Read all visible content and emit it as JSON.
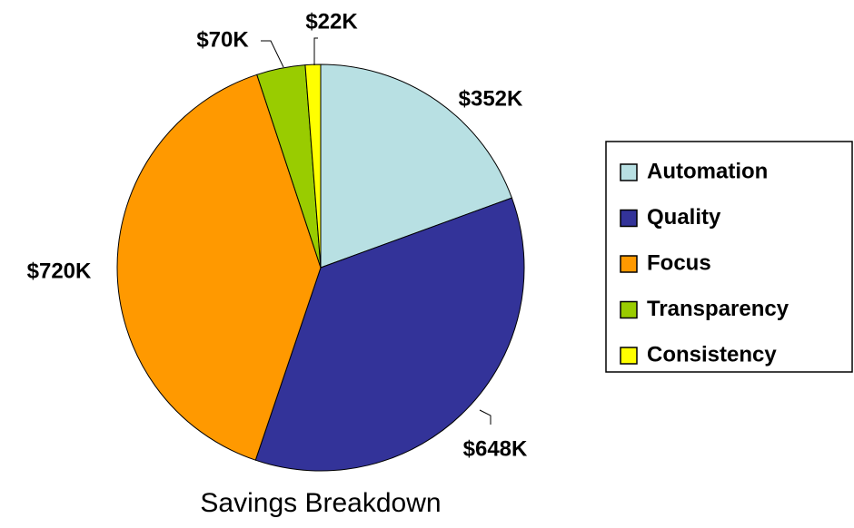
{
  "chart_data": {
    "type": "pie",
    "title": "Savings Breakdown",
    "categories": [
      "Automation",
      "Quality",
      "Focus",
      "Transparency",
      "Consistency"
    ],
    "values": [
      352,
      648,
      720,
      70,
      22
    ],
    "value_labels": [
      "$352K",
      "$648K",
      "$720K",
      "$70K",
      "$22K"
    ],
    "colors": [
      "#b8e0e3",
      "#333399",
      "#ff9900",
      "#99cc00",
      "#ffff00"
    ],
    "legend": "right"
  }
}
